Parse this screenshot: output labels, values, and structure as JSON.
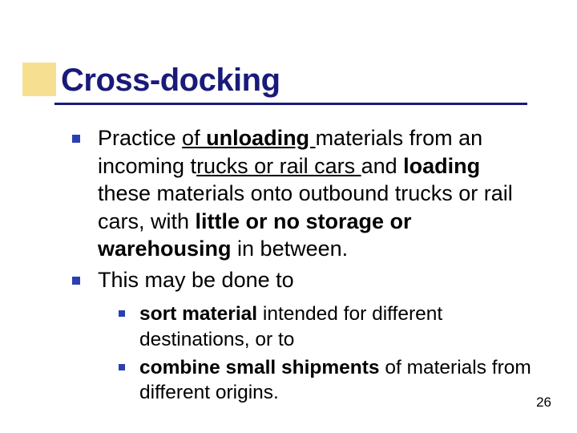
{
  "colors": {
    "accent": "#f2c94a",
    "title": "#1a1a7a",
    "underline": "#1a1a7a",
    "bullet": "#2a3fb0",
    "text": "#000000",
    "background": "#ffffff"
  },
  "title": "Cross-docking",
  "title_fontsize": 40,
  "body_fontsize": 27,
  "sub_fontsize": 24.5,
  "bullets": [
    {
      "segments": [
        {
          "text": "Practice ",
          "bold": false,
          "underline": false
        },
        {
          "text": "of ",
          "bold": false,
          "underline": true
        },
        {
          "text": "unloading ",
          "bold": true,
          "underline": true
        },
        {
          "text": "materials from an incoming t",
          "bold": false,
          "underline": false
        },
        {
          "text": "rucks or rail cars ",
          "bold": false,
          "underline": true
        },
        {
          "text": "and ",
          "bold": false,
          "underline": false
        },
        {
          "text": "loading",
          "bold": true,
          "underline": false
        },
        {
          "text": " these materials onto outbound trucks or rail cars, with ",
          "bold": false,
          "underline": false
        },
        {
          "text": "little or no storage or warehousing",
          "bold": true,
          "underline": false
        },
        {
          "text": " in between.",
          "bold": false,
          "underline": false
        }
      ]
    },
    {
      "segments": [
        {
          "text": "This may be done to",
          "bold": false,
          "underline": false
        }
      ]
    }
  ],
  "sub_bullets": [
    {
      "segments": [
        {
          "text": "sort material",
          "bold": true,
          "underline": false
        },
        {
          "text": " intended for different destinations, or to",
          "bold": false,
          "underline": false
        }
      ]
    },
    {
      "segments": [
        {
          "text": "combine small shipments",
          "bold": true,
          "underline": false
        },
        {
          "text": " of materials from different origins.",
          "bold": false,
          "underline": false
        }
      ]
    }
  ],
  "page_number": "26"
}
